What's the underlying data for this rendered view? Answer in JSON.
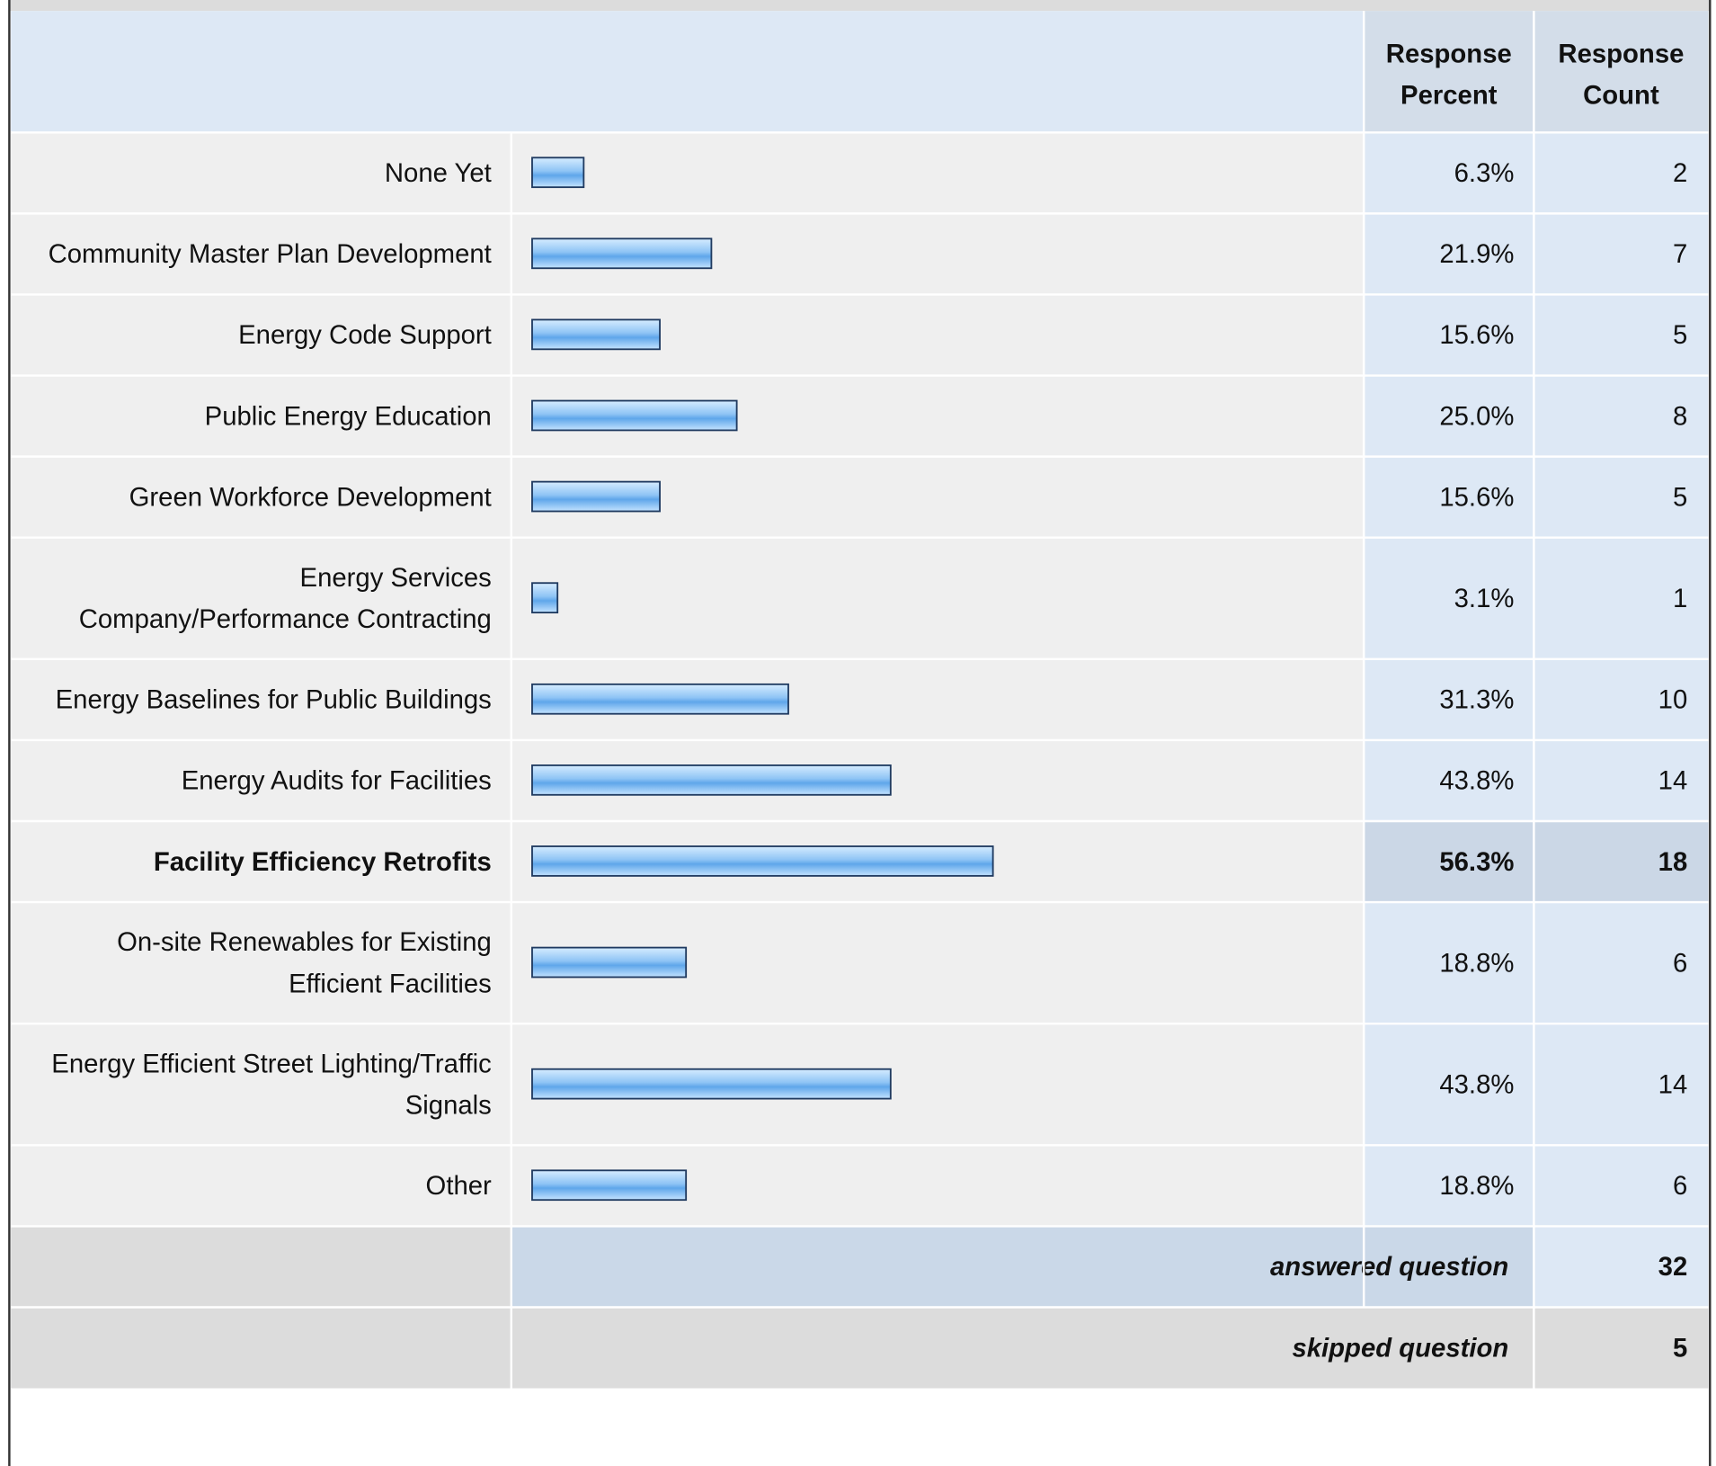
{
  "chart_data": {
    "type": "bar",
    "orientation": "horizontal",
    "categories": [
      "None Yet",
      "Community Master Plan Development",
      "Energy Code Support",
      "Public Energy Education",
      "Green Workforce Development",
      "Energy Services Company/Performance Contracting",
      "Energy Baselines for Public Buildings",
      "Energy Audits for Facilities",
      "Facility Efficiency Retrofits",
      "On-site Renewables for Existing Efficient Facilities",
      "Energy Efficient Street Lighting/Traffic Signals",
      "Other"
    ],
    "series": [
      {
        "name": "Response Percent",
        "color": "#8fc4f5",
        "values": [
          6.3,
          21.9,
          15.6,
          25.0,
          15.6,
          3.1,
          31.3,
          43.8,
          56.3,
          18.8,
          43.8,
          18.8
        ],
        "value_labels": [
          "6.3%",
          "21.9%",
          "15.6%",
          "25.0%",
          "15.6%",
          "3.1%",
          "31.3%",
          "43.8%",
          "56.3%",
          "18.8%",
          "43.8%",
          "18.8%"
        ]
      },
      {
        "name": "Response Count",
        "values": [
          2,
          7,
          5,
          8,
          5,
          1,
          10,
          14,
          18,
          6,
          14,
          6
        ]
      }
    ],
    "xlim": [
      0,
      100
    ],
    "highlight": 8,
    "summary": [
      {
        "label": "answered question",
        "value": 32
      },
      {
        "label": "skipped question",
        "value": 5
      }
    ]
  }
}
